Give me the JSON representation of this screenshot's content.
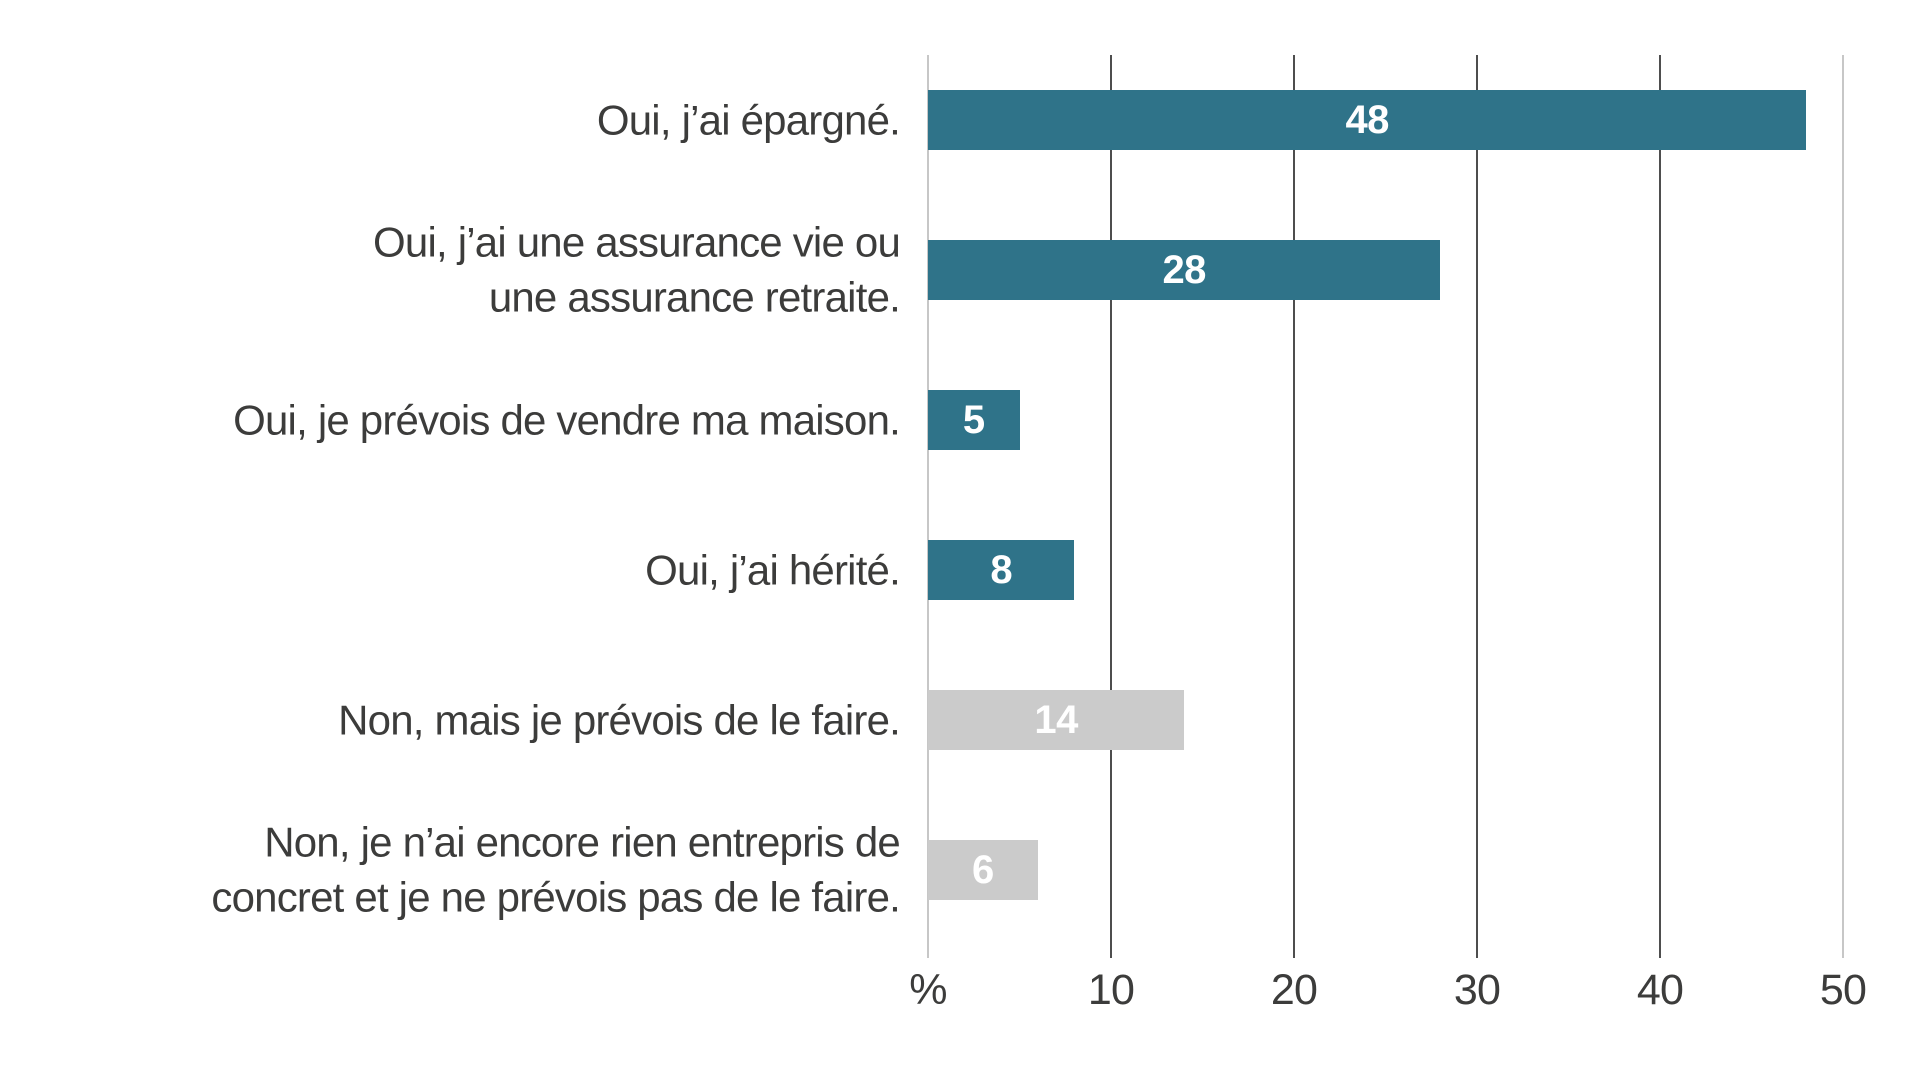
{
  "chart_data": {
    "type": "bar",
    "orientation": "horizontal",
    "title": "",
    "xlabel": "%",
    "ylabel": "",
    "categories": [
      "Oui, j’ai épargné.",
      "Oui, j’ai une assurance vie ou\nune assurance retraite.",
      "Oui, je prévois de vendre ma maison.",
      "Oui, j’ai hérité.",
      "Non, mais je prévois de le faire.",
      "Non, je n’ai encore rien entrepris de\nconcret et je ne prévois pas de le faire."
    ],
    "values": [
      48,
      28,
      5,
      8,
      14,
      6
    ],
    "bar_colors": [
      "teal",
      "teal",
      "teal",
      "teal",
      "gray",
      "gray"
    ],
    "palette": {
      "teal": "#2F7389",
      "gray": "#CBCBCB"
    },
    "value_label_style": "bold white, centered inside bar",
    "x_ticks": [
      {
        "value": 0,
        "label": "%"
      },
      {
        "value": 10,
        "label": "10"
      },
      {
        "value": 20,
        "label": "20"
      },
      {
        "value": 30,
        "label": "30"
      },
      {
        "value": 40,
        "label": "40"
      },
      {
        "value": 50,
        "label": "50"
      }
    ],
    "xlim": [
      0,
      50
    ],
    "grid": "vertical gridlines on, boundary lines lighter",
    "legend": "none"
  }
}
